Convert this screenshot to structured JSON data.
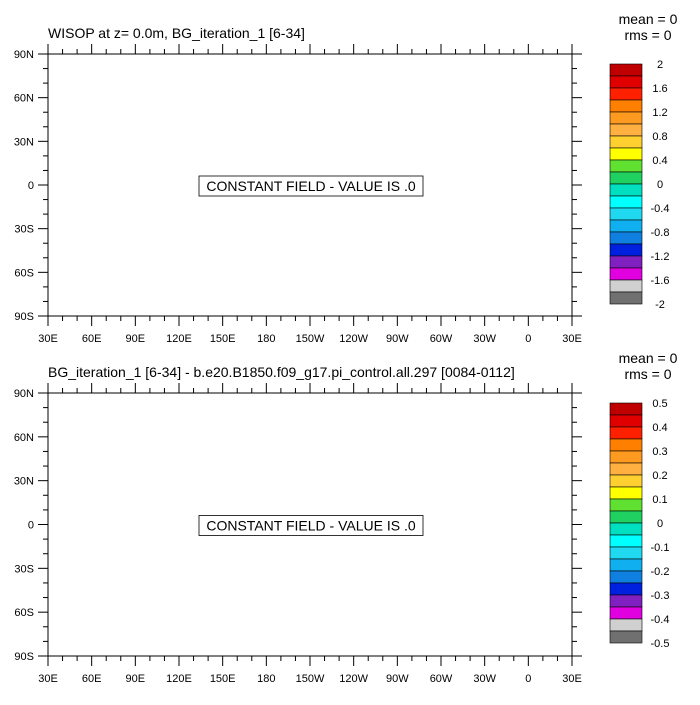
{
  "chart_data": [
    {
      "type": "heatmap",
      "title": "WISOP at z=   0.0m, BG_iteration_1 [6-34]",
      "stats": [
        "mean = 0",
        "rms = 0"
      ],
      "annotation": "CONSTANT FIELD - VALUE IS .0",
      "lat_ticks": [
        "90N",
        "60N",
        "30N",
        "0",
        "30S",
        "60S",
        "90S"
      ],
      "lon_ticks": [
        "30E",
        "60E",
        "90E",
        "120E",
        "150E",
        "180",
        "150W",
        "120W",
        "90W",
        "60W",
        "30W",
        "0",
        "30E"
      ],
      "colorbar_labels": [
        "2",
        "1.6",
        "1.2",
        "0.8",
        "0.4",
        "0",
        "-0.4",
        "-0.8",
        "-1.2",
        "-1.6",
        "-2"
      ],
      "constant_value": 0
    },
    {
      "type": "heatmap",
      "title": "BG_iteration_1 [6-34] - b.e20.B1850.f09_g17.pi_control.all.297 [0084-0112]",
      "stats": [
        "mean = 0",
        "rms = 0"
      ],
      "annotation": "CONSTANT FIELD - VALUE IS .0",
      "lat_ticks": [
        "90N",
        "60N",
        "30N",
        "0",
        "30S",
        "60S",
        "90S"
      ],
      "lon_ticks": [
        "30E",
        "60E",
        "90E",
        "120E",
        "150E",
        "180",
        "150W",
        "120W",
        "90W",
        "60W",
        "30W",
        "0",
        "30E"
      ],
      "colorbar_labels": [
        "0.5",
        "0.4",
        "0.3",
        "0.2",
        "0.1",
        "0",
        "-0.1",
        "-0.2",
        "-0.3",
        "-0.4",
        "-0.5"
      ],
      "constant_value": 0
    }
  ],
  "colorbar_colors": [
    "#c00000",
    "#e00000",
    "#ff2000",
    "#ff8000",
    "#ff9a20",
    "#ffb040",
    "#ffd030",
    "#ffff00",
    "#60e030",
    "#20d060",
    "#00e0c0",
    "#00ffff",
    "#20d8f0",
    "#10b0f0",
    "#1080e0",
    "#0020e0",
    "#8020c0",
    "#e000e0",
    "#d0d0d0",
    "#707070"
  ]
}
